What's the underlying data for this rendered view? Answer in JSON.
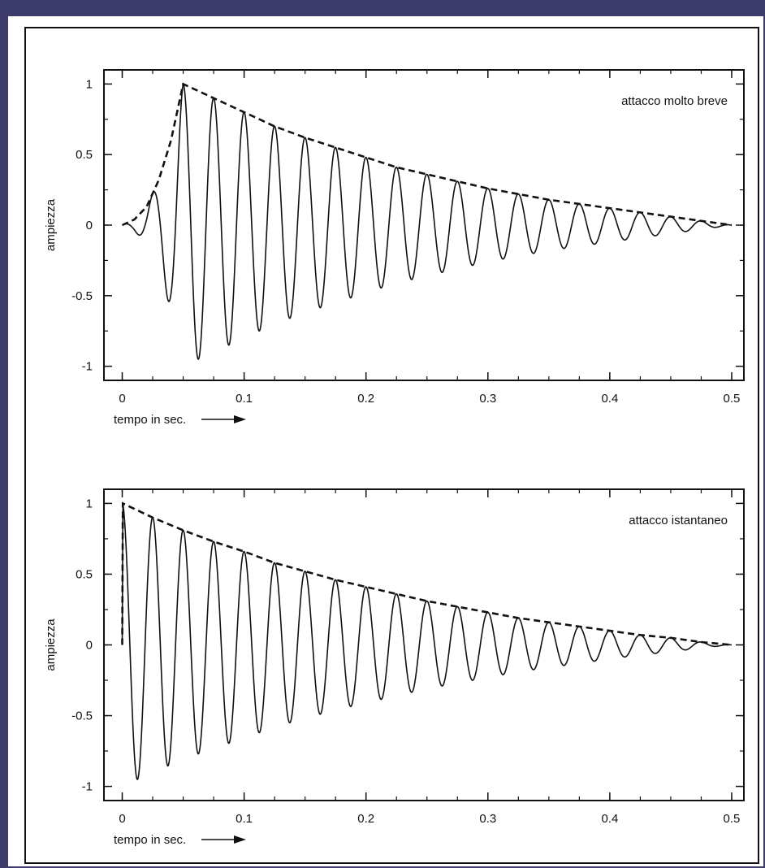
{
  "chart_data": [
    {
      "type": "line",
      "title": "",
      "xlabel": "tempo in sec.",
      "ylabel": "ampiezza",
      "xlim": [
        -0.015,
        0.51
      ],
      "ylim": [
        -1.1,
        1.1
      ],
      "xticks": [
        0,
        0.1,
        0.2,
        0.3,
        0.4,
        0.5
      ],
      "xtick_labels": [
        "0",
        "0.1",
        "0.2",
        "0.3",
        "0.4",
        "0.5"
      ],
      "yticks": [
        1,
        0.5,
        0,
        -0.5,
        -1
      ],
      "ytick_labels": [
        "1",
        "0.5",
        "0",
        "-0.5",
        "-1"
      ],
      "minor_xtick_step": 0.025,
      "minor_ytick_step": 0.25,
      "grid": false,
      "annotation": "attacco molto breve",
      "annotation_position": "top-right",
      "waveform_frequency_hz": 40,
      "attack_time_s": 0.05,
      "series": [
        {
          "style": "solid",
          "envelope_points": [
            [
              0,
              0
            ],
            [
              0.01,
              0.04
            ],
            [
              0.02,
              0.13
            ],
            [
              0.03,
              0.32
            ],
            [
              0.04,
              0.6
            ],
            [
              0.05,
              1.0
            ],
            [
              0.075,
              0.9
            ],
            [
              0.1,
              0.8
            ],
            [
              0.125,
              0.7
            ],
            [
              0.15,
              0.62
            ],
            [
              0.175,
              0.55
            ],
            [
              0.2,
              0.48
            ],
            [
              0.225,
              0.41
            ],
            [
              0.25,
              0.36
            ],
            [
              0.275,
              0.31
            ],
            [
              0.3,
              0.26
            ],
            [
              0.325,
              0.22
            ],
            [
              0.35,
              0.18
            ],
            [
              0.375,
              0.15
            ],
            [
              0.4,
              0.12
            ],
            [
              0.425,
              0.09
            ],
            [
              0.45,
              0.06
            ],
            [
              0.475,
              0.03
            ],
            [
              0.5,
              0.0
            ]
          ]
        },
        {
          "style": "dashed",
          "points": [
            [
              0,
              0
            ],
            [
              0.01,
              0.04
            ],
            [
              0.02,
              0.13
            ],
            [
              0.03,
              0.32
            ],
            [
              0.04,
              0.6
            ],
            [
              0.05,
              1.0
            ],
            [
              0.075,
              0.9
            ],
            [
              0.1,
              0.8
            ],
            [
              0.125,
              0.7
            ],
            [
              0.15,
              0.62
            ],
            [
              0.175,
              0.55
            ],
            [
              0.2,
              0.48
            ],
            [
              0.225,
              0.41
            ],
            [
              0.25,
              0.36
            ],
            [
              0.275,
              0.31
            ],
            [
              0.3,
              0.26
            ],
            [
              0.325,
              0.22
            ],
            [
              0.35,
              0.18
            ],
            [
              0.375,
              0.15
            ],
            [
              0.4,
              0.12
            ],
            [
              0.425,
              0.09
            ],
            [
              0.45,
              0.06
            ],
            [
              0.475,
              0.03
            ],
            [
              0.5,
              0.0
            ]
          ]
        }
      ]
    },
    {
      "type": "line",
      "title": "",
      "xlabel": "tempo in sec.",
      "ylabel": "ampiezza",
      "xlim": [
        -0.015,
        0.51
      ],
      "ylim": [
        -1.1,
        1.1
      ],
      "xticks": [
        0,
        0.1,
        0.2,
        0.3,
        0.4,
        0.5
      ],
      "xtick_labels": [
        "0",
        "0.1",
        "0.2",
        "0.3",
        "0.4",
        "0.5"
      ],
      "yticks": [
        1,
        0.5,
        0,
        -0.5,
        -1
      ],
      "ytick_labels": [
        "1",
        "0.5",
        "0",
        "-0.5",
        "-1"
      ],
      "minor_xtick_step": 0.025,
      "minor_ytick_step": 0.25,
      "grid": false,
      "annotation": "attacco istantaneo",
      "annotation_position": "top-right",
      "waveform_frequency_hz": 40,
      "attack_time_s": 0,
      "series": [
        {
          "style": "solid",
          "envelope_points": [
            [
              0,
              0
            ],
            [
              0.0005,
              1.0
            ],
            [
              0.025,
              0.9
            ],
            [
              0.05,
              0.81
            ],
            [
              0.075,
              0.73
            ],
            [
              0.1,
              0.66
            ],
            [
              0.125,
              0.58
            ],
            [
              0.15,
              0.52
            ],
            [
              0.175,
              0.46
            ],
            [
              0.2,
              0.41
            ],
            [
              0.225,
              0.36
            ],
            [
              0.25,
              0.31
            ],
            [
              0.275,
              0.27
            ],
            [
              0.3,
              0.23
            ],
            [
              0.325,
              0.19
            ],
            [
              0.35,
              0.16
            ],
            [
              0.375,
              0.13
            ],
            [
              0.4,
              0.1
            ],
            [
              0.425,
              0.07
            ],
            [
              0.45,
              0.05
            ],
            [
              0.475,
              0.02
            ],
            [
              0.5,
              0.0
            ]
          ]
        },
        {
          "style": "dashed",
          "points": [
            [
              0,
              0
            ],
            [
              0.0005,
              1.0
            ],
            [
              0.025,
              0.9
            ],
            [
              0.05,
              0.81
            ],
            [
              0.075,
              0.73
            ],
            [
              0.1,
              0.66
            ],
            [
              0.125,
              0.58
            ],
            [
              0.15,
              0.52
            ],
            [
              0.175,
              0.46
            ],
            [
              0.2,
              0.41
            ],
            [
              0.225,
              0.36
            ],
            [
              0.25,
              0.31
            ],
            [
              0.275,
              0.27
            ],
            [
              0.3,
              0.23
            ],
            [
              0.325,
              0.19
            ],
            [
              0.35,
              0.16
            ],
            [
              0.375,
              0.13
            ],
            [
              0.4,
              0.1
            ],
            [
              0.425,
              0.07
            ],
            [
              0.45,
              0.05
            ],
            [
              0.475,
              0.02
            ],
            [
              0.5,
              0.0
            ]
          ]
        }
      ]
    }
  ]
}
